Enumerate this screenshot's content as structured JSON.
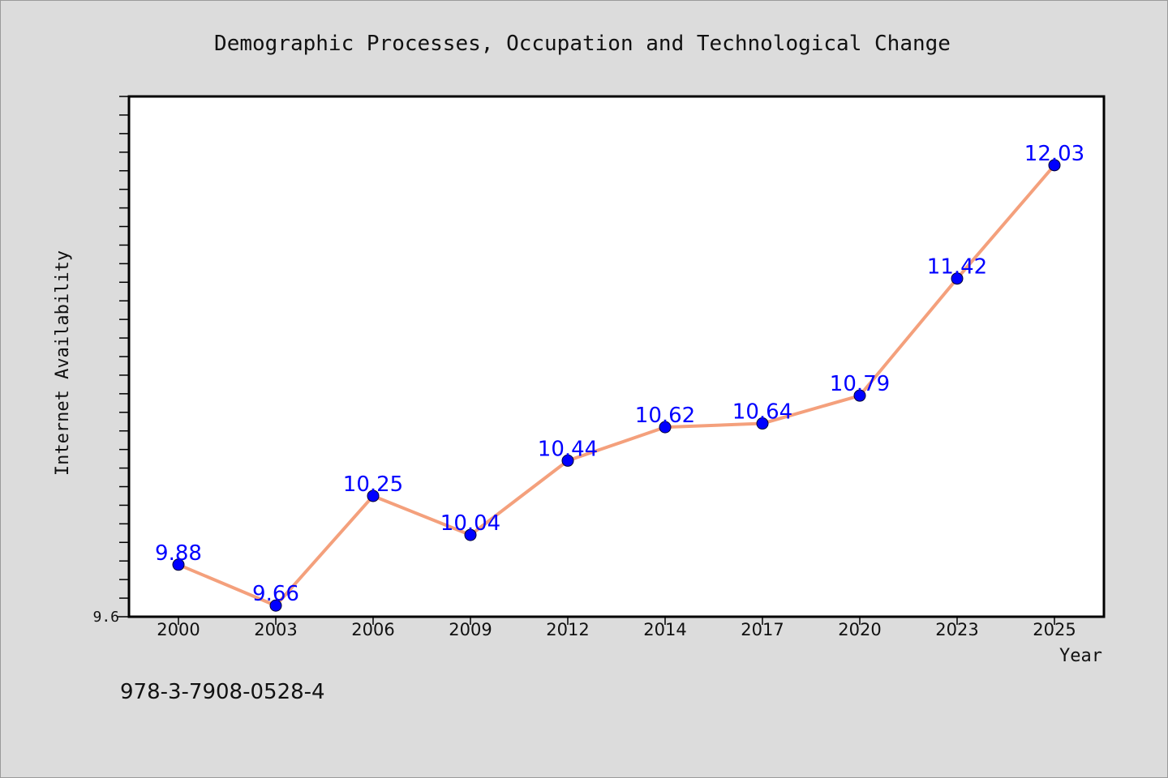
{
  "chart_data": {
    "type": "line",
    "title": "Demographic Processes, Occupation and Technological Change",
    "xlabel": "Year",
    "ylabel": "Internet Availability",
    "categories": [
      "2000",
      "2003",
      "2006",
      "2009",
      "2012",
      "2014",
      "2017",
      "2020",
      "2023",
      "2025"
    ],
    "series": [
      {
        "values": [
          9.88,
          9.66,
          10.25,
          10.04,
          10.44,
          10.62,
          10.64,
          10.79,
          11.42,
          12.03
        ],
        "data_labels": [
          "9.88",
          "9.66",
          "10.25",
          "10.04",
          "10.44",
          "10.62",
          "10.64",
          "10.79",
          "11.42",
          "12.03"
        ]
      }
    ],
    "ylim": [
      9.6,
      12.4
    ],
    "yticks_labeled": [
      "9.6"
    ],
    "grid": false,
    "legend": "none",
    "colors": {
      "line": "#f4a07c",
      "marker": "#0000ff",
      "data_label": "#0000ff",
      "plot_background": "#ffffff",
      "figure_background": "#dcdcdc"
    }
  },
  "footnote": "978-3-7908-0528-4"
}
